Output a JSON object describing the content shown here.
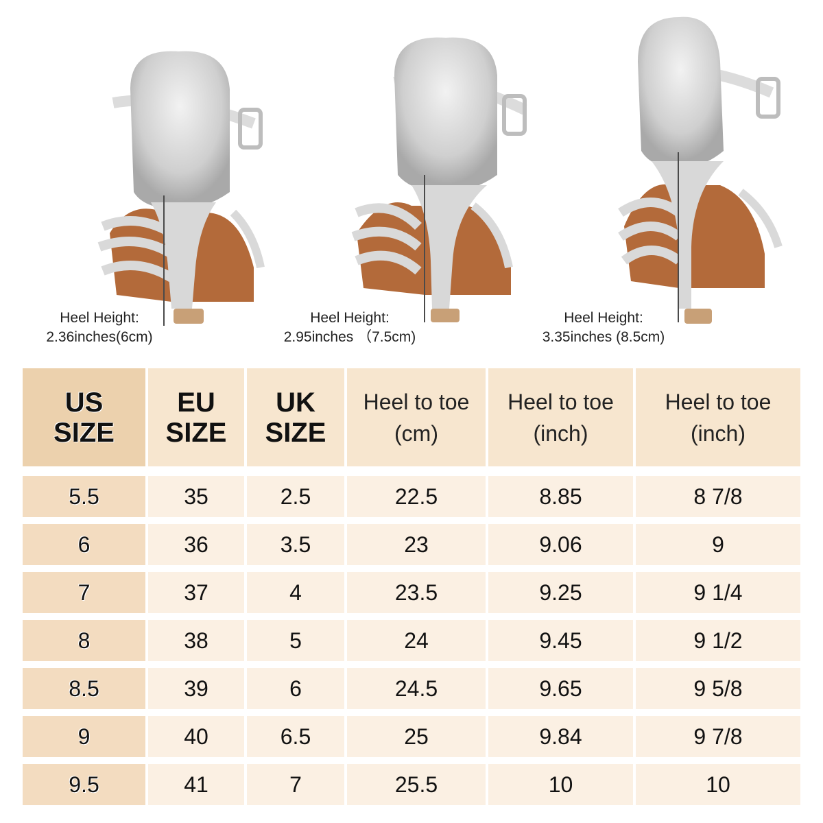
{
  "heel_labels": [
    {
      "title": "Heel Height:",
      "value": "2.36inches(6cm)"
    },
    {
      "title": "Heel Height:",
      "value": "2.95inches （7.5cm)"
    },
    {
      "title": "Heel Height:",
      "value": "3.35inches (8.5cm)"
    }
  ],
  "table": {
    "headers": [
      {
        "line1": "US",
        "line2": "SIZE"
      },
      {
        "line1": "EU",
        "line2": "SIZE"
      },
      {
        "line1": "UK",
        "line2": "SIZE"
      },
      {
        "line1": "Heel to toe",
        "line2": "(cm)"
      },
      {
        "line1": "Heel to toe",
        "line2": "(inch)"
      },
      {
        "line1": "Heel to toe",
        "line2": "(inch)"
      }
    ],
    "rows": [
      [
        "5.5",
        "35",
        "2.5",
        "22.5",
        "8.85",
        "8 7/8"
      ],
      [
        "6",
        "36",
        "3.5",
        "23",
        "9.06",
        "9"
      ],
      [
        "7",
        "37",
        "4",
        "23.5",
        "9.25",
        "9 1/4"
      ],
      [
        "8",
        "38",
        "5",
        "24",
        "9.45",
        "9 1/2"
      ],
      [
        "8.5",
        "39",
        "6",
        "24.5",
        "9.65",
        "9 5/8"
      ],
      [
        "9",
        "40",
        "6.5",
        "25",
        "9.84",
        "9 7/8"
      ],
      [
        "9.5",
        "41",
        "7",
        "25.5",
        "10",
        "10"
      ]
    ]
  },
  "colors": {
    "us_header": "#ecd1ad",
    "header": "#f7e6cf",
    "us_cell": "#f3dcc0",
    "cell": "#fbf0e3"
  }
}
